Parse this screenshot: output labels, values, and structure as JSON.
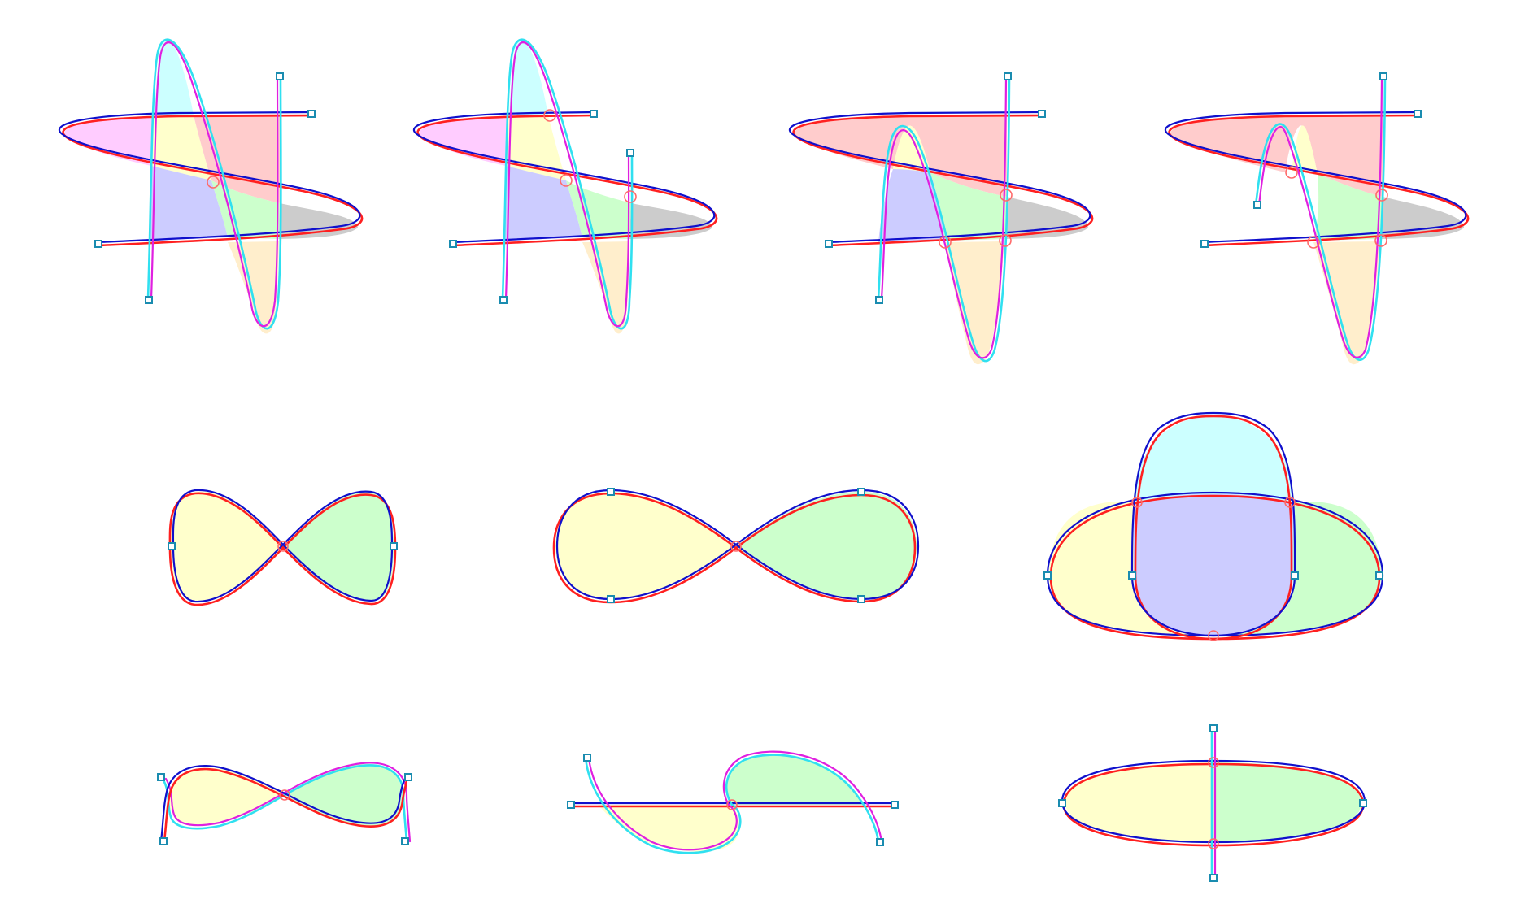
{
  "colors": {
    "background": "#ffffff",
    "curve_red": "#ff2020",
    "curve_blue": "#1010cc",
    "curve_cyan": "#30e0f0",
    "curve_magenta": "#e020e0",
    "endpoint_stroke": "#1a8cb0",
    "crossing_stroke": "#ff6a6a",
    "fill_magenta": "#ffccff",
    "fill_yellow": "#ffffcc",
    "fill_red": "#ffcccc",
    "fill_blue": "#ccccff",
    "fill_green": "#ccffcc",
    "fill_gray": "#cccccc",
    "fill_orange": "#ffeecc",
    "fill_cyan": "#ccffff"
  },
  "panels": [
    {
      "id": "r1c1",
      "regions": [
        "magenta",
        "yellow",
        "red",
        "blue",
        "green",
        "gray",
        "orange",
        "cyan"
      ],
      "crossings": 1,
      "endpoints": 4
    },
    {
      "id": "r1c2",
      "regions": [
        "magenta",
        "yellow",
        "blue",
        "green",
        "gray",
        "orange",
        "cyan"
      ],
      "crossings": 3,
      "endpoints": 4
    },
    {
      "id": "r1c3",
      "regions": [
        "red",
        "yellow",
        "blue",
        "green",
        "gray",
        "orange"
      ],
      "crossings": 4,
      "endpoints": 4
    },
    {
      "id": "r1c4",
      "regions": [
        "red",
        "yellow",
        "green",
        "gray",
        "orange"
      ],
      "crossings": 4,
      "endpoints": 4
    },
    {
      "id": "r2c1",
      "regions": [
        "yellow",
        "green"
      ],
      "crossings": 1,
      "endpoints": 2
    },
    {
      "id": "r2c2",
      "regions": [
        "yellow",
        "green"
      ],
      "crossings": 1,
      "endpoints": 4
    },
    {
      "id": "r2c3",
      "regions": [
        "cyan",
        "blue",
        "yellow",
        "green"
      ],
      "crossings": 3,
      "endpoints": 4
    },
    {
      "id": "r3c1",
      "regions": [
        "yellow",
        "green"
      ],
      "crossings": 1,
      "endpoints": 4
    },
    {
      "id": "r3c2",
      "regions": [
        "yellow",
        "green"
      ],
      "crossings": 1,
      "endpoints": 4
    },
    {
      "id": "r3c3",
      "regions": [
        "yellow",
        "green"
      ],
      "crossings": 2,
      "endpoints": 4
    }
  ]
}
